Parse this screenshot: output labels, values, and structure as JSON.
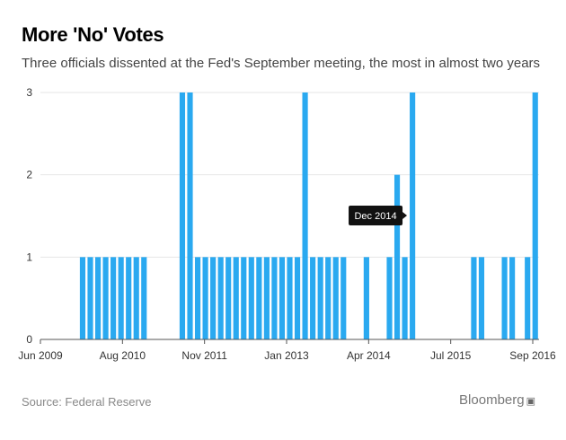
{
  "title": "More 'No' Votes",
  "subtitle": "Three officials dissented at the Fed's September meeting, the most in almost two years",
  "source": "Source: Federal Reserve",
  "brand": "Bloomberg",
  "brand_glyph": "▣",
  "colors": {
    "bar": "#2aa9f0",
    "tooltip_bg": "#111111",
    "tooltip_text": "#ffffff",
    "axis": "#555555",
    "grid": "#e6e6e6"
  },
  "chart_data": {
    "type": "bar",
    "title": "More 'No' Votes",
    "subtitle": "Three officials dissented at the Fed's September meeting, the most in almost two years",
    "xlabel": "",
    "ylabel": "",
    "ylim": [
      0,
      3
    ],
    "yticks": [
      "0",
      "1",
      "2",
      "3"
    ],
    "grid": "horizontal",
    "x_tick_labels": [
      "Jun 2009",
      "Aug 2010",
      "Nov 2011",
      "Jan 2013",
      "Apr 2014",
      "Jul 2015",
      "Sep 2016"
    ],
    "series": [
      {
        "values": [
          0,
          0,
          0,
          0,
          0,
          1,
          1,
          1,
          1,
          1,
          1,
          1,
          1,
          1,
          0,
          0,
          0,
          0,
          3,
          3,
          1,
          1,
          1,
          1,
          1,
          1,
          1,
          1,
          1,
          1,
          1,
          1,
          1,
          1,
          3,
          1,
          1,
          1,
          1,
          1,
          0,
          0,
          1,
          0,
          0,
          1,
          2,
          1,
          3,
          0,
          0,
          0,
          0,
          0,
          0,
          0,
          1,
          1,
          0,
          0,
          1,
          1,
          0,
          1,
          3
        ]
      }
    ],
    "annotation": {
      "label": "Dec 2014",
      "bar_index": 48
    }
  }
}
